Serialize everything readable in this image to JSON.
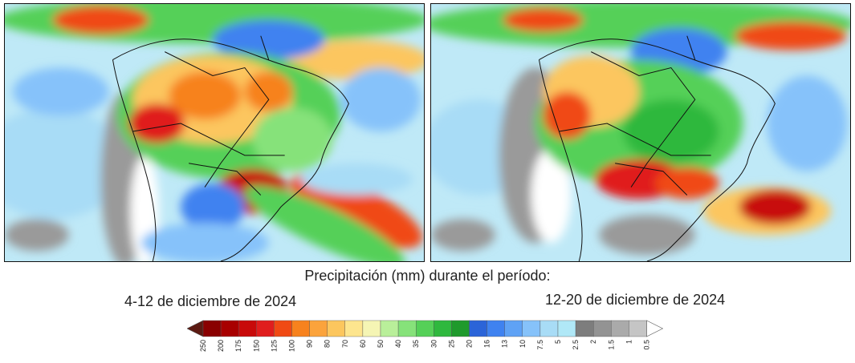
{
  "maps": [
    {
      "id": "map-left",
      "period": "4-12 de diciembre de 2024"
    },
    {
      "id": "map-right",
      "period": "12-20 de diciembre de 2024"
    }
  ],
  "title": "Precipitación (mm) durante el período:",
  "legend": {
    "labels": [
      "250",
      "200",
      "175",
      "150",
      "125",
      "100",
      "90",
      "80",
      "70",
      "60",
      "50",
      "40",
      "35",
      "30",
      "25",
      "20",
      "16",
      "13",
      "10",
      "7.5",
      "5",
      "2.5",
      "2",
      "1.5",
      "1",
      "0.5"
    ],
    "colors": [
      "#5c1a12",
      "#8a0000",
      "#a80000",
      "#c80a0a",
      "#e01e1e",
      "#f04a14",
      "#f7821e",
      "#fba33c",
      "#fcc65e",
      "#fde58e",
      "#f5f5b4",
      "#b9ef9a",
      "#86e27a",
      "#55d058",
      "#2fb83e",
      "#1f9a2c",
      "#2b64d8",
      "#3f82f0",
      "#5fa2f5",
      "#86c2fa",
      "#a8dcf6",
      "#b0e8f7",
      "#7d7d7d",
      "#939393",
      "#aaaaaa",
      "#c5c5c5",
      "#ffffff"
    ]
  }
}
